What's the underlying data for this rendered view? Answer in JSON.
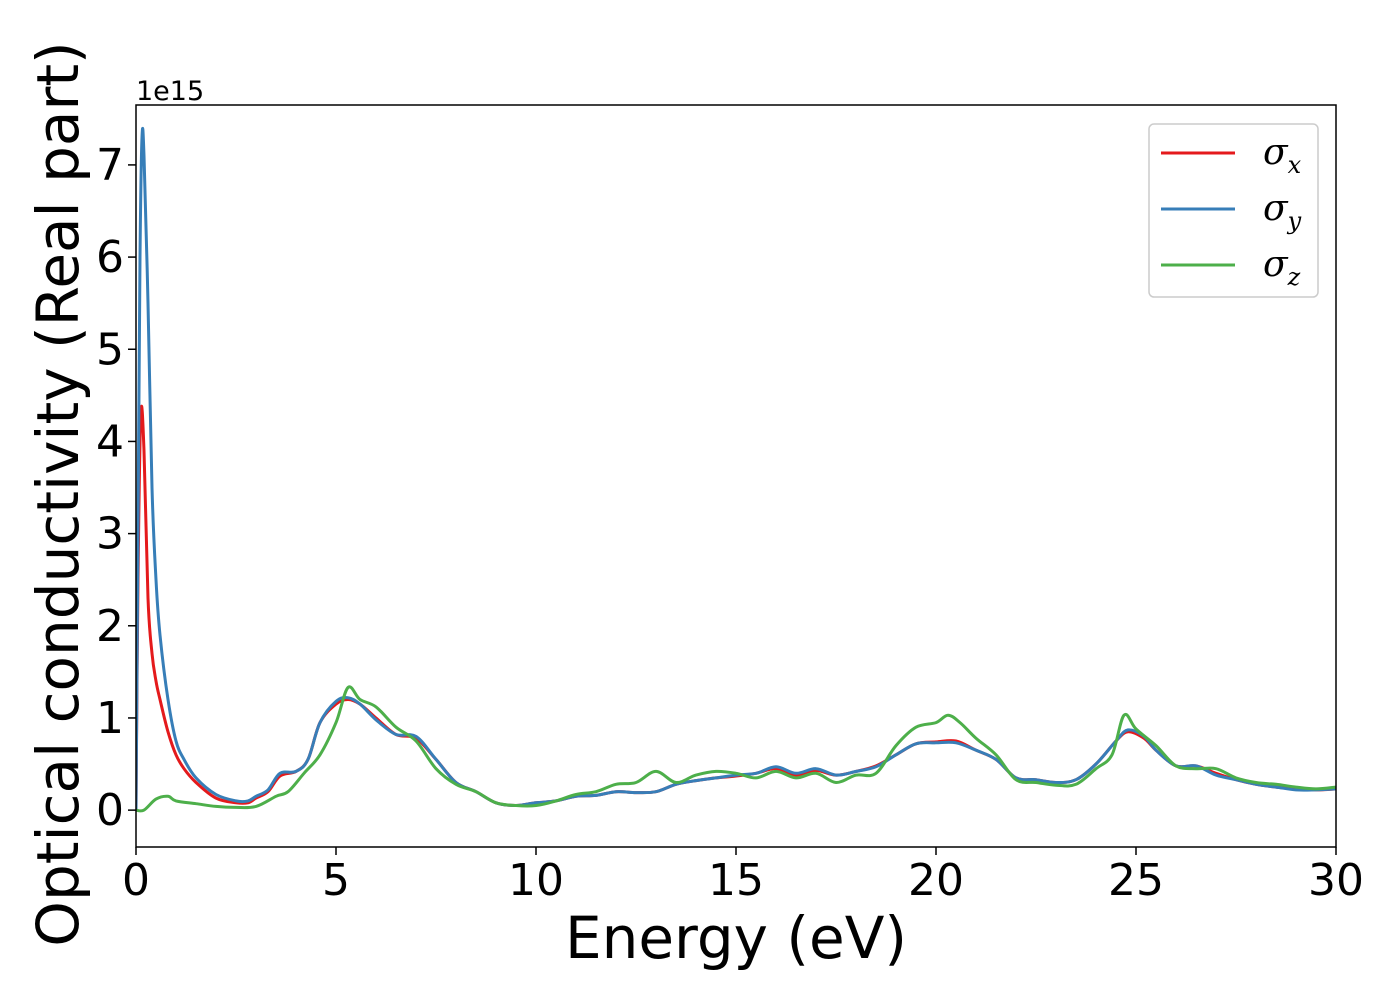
{
  "chart_data": {
    "type": "line",
    "title": "",
    "xlabel": "Energy (eV)",
    "ylabel": "Optical conductivity (Real part)",
    "y_offset_label": "1e15",
    "xlim": [
      0,
      30
    ],
    "ylim": [
      -0.4,
      7.65
    ],
    "xticks": [
      0,
      5,
      10,
      15,
      20,
      25,
      30
    ],
    "xtick_labels": [
      "0",
      "5",
      "10",
      "15",
      "20",
      "25",
      "30"
    ],
    "yticks": [
      0,
      1,
      2,
      3,
      4,
      5,
      6,
      7
    ],
    "ytick_labels": [
      "0",
      "1",
      "2",
      "3",
      "4",
      "5",
      "6",
      "7"
    ],
    "grid": false,
    "legend_position": "top-right",
    "series": [
      {
        "name": "σx",
        "symbol": "σ",
        "subscript": "x",
        "color": "#e41a1c",
        "x": [
          0,
          0.05,
          0.12,
          0.2,
          0.3,
          0.4,
          0.5,
          0.6,
          0.8,
          1.0,
          1.2,
          1.5,
          2.0,
          2.5,
          2.8,
          3.0,
          3.3,
          3.6,
          4.0,
          4.3,
          4.6,
          5.0,
          5.3,
          5.6,
          6.0,
          6.5,
          7.0,
          7.5,
          8.0,
          8.5,
          9.0,
          9.5,
          10.0,
          10.5,
          11.0,
          11.5,
          12.0,
          12.5,
          13.0,
          13.5,
          14.0,
          14.5,
          15.0,
          15.5,
          16.0,
          16.5,
          17.0,
          17.5,
          18.0,
          18.5,
          19.0,
          19.5,
          20.0,
          20.5,
          21.0,
          21.5,
          22.0,
          22.5,
          23.0,
          23.5,
          24.0,
          24.5,
          24.8,
          25.2,
          25.5,
          26.0,
          26.5,
          27.0,
          27.5,
          28.0,
          28.5,
          29.0,
          29.5,
          30.0
        ],
        "values": [
          0,
          2.5,
          4.3,
          3.9,
          2.3,
          1.7,
          1.4,
          1.2,
          0.85,
          0.6,
          0.45,
          0.3,
          0.13,
          0.08,
          0.08,
          0.13,
          0.2,
          0.37,
          0.42,
          0.55,
          0.95,
          1.15,
          1.2,
          1.15,
          1.0,
          0.82,
          0.78,
          0.55,
          0.3,
          0.2,
          0.08,
          0.05,
          0.08,
          0.1,
          0.15,
          0.16,
          0.2,
          0.19,
          0.2,
          0.28,
          0.32,
          0.35,
          0.37,
          0.4,
          0.45,
          0.38,
          0.43,
          0.38,
          0.42,
          0.48,
          0.6,
          0.72,
          0.74,
          0.75,
          0.65,
          0.55,
          0.35,
          0.33,
          0.3,
          0.33,
          0.5,
          0.75,
          0.85,
          0.78,
          0.65,
          0.48,
          0.48,
          0.4,
          0.33,
          0.28,
          0.25,
          0.23,
          0.22,
          0.23
        ]
      },
      {
        "name": "σy",
        "symbol": "σ",
        "subscript": "y",
        "color": "#377eb8",
        "x": [
          0,
          0.05,
          0.1,
          0.15,
          0.2,
          0.3,
          0.4,
          0.5,
          0.6,
          0.8,
          1.0,
          1.2,
          1.5,
          2.0,
          2.5,
          2.8,
          3.0,
          3.3,
          3.6,
          4.0,
          4.3,
          4.6,
          5.0,
          5.3,
          5.6,
          6.0,
          6.5,
          7.0,
          7.5,
          8.0,
          8.5,
          9.0,
          9.5,
          10.0,
          10.5,
          11.0,
          11.5,
          12.0,
          12.5,
          13.0,
          13.5,
          14.0,
          14.5,
          15.0,
          15.5,
          16.0,
          16.5,
          17.0,
          17.5,
          18.0,
          18.5,
          19.0,
          19.5,
          20.0,
          20.5,
          21.0,
          21.5,
          22.0,
          22.5,
          23.0,
          23.5,
          24.0,
          24.5,
          24.8,
          25.2,
          25.5,
          26.0,
          26.5,
          27.0,
          27.5,
          28.0,
          28.5,
          29.0,
          29.5,
          30.0
        ],
        "values": [
          0,
          3.0,
          6.0,
          7.3,
          7.1,
          5.5,
          3.5,
          2.5,
          1.9,
          1.2,
          0.75,
          0.55,
          0.35,
          0.17,
          0.1,
          0.1,
          0.15,
          0.22,
          0.4,
          0.42,
          0.55,
          0.95,
          1.18,
          1.22,
          1.15,
          0.98,
          0.82,
          0.8,
          0.55,
          0.3,
          0.2,
          0.08,
          0.05,
          0.08,
          0.1,
          0.15,
          0.16,
          0.2,
          0.19,
          0.2,
          0.28,
          0.32,
          0.35,
          0.38,
          0.4,
          0.47,
          0.4,
          0.45,
          0.38,
          0.42,
          0.47,
          0.6,
          0.72,
          0.73,
          0.73,
          0.65,
          0.55,
          0.35,
          0.33,
          0.3,
          0.33,
          0.5,
          0.75,
          0.87,
          0.8,
          0.65,
          0.48,
          0.48,
          0.38,
          0.33,
          0.28,
          0.25,
          0.22,
          0.22,
          0.23
        ]
      },
      {
        "name": "σz",
        "symbol": "σ",
        "subscript": "z",
        "color": "#4daf4a",
        "x": [
          0,
          0.2,
          0.5,
          0.8,
          1.0,
          1.5,
          2.0,
          2.5,
          3.0,
          3.5,
          3.8,
          4.2,
          4.6,
          5.0,
          5.3,
          5.6,
          6.0,
          6.5,
          7.0,
          7.5,
          8.0,
          8.5,
          9.0,
          9.5,
          10.0,
          10.5,
          11.0,
          11.5,
          12.0,
          12.5,
          13.0,
          13.5,
          14.0,
          14.5,
          15.0,
          15.5,
          16.0,
          16.5,
          17.0,
          17.5,
          18.0,
          18.5,
          19.0,
          19.5,
          20.0,
          20.3,
          20.6,
          21.0,
          21.5,
          22.0,
          22.5,
          23.0,
          23.5,
          24.0,
          24.4,
          24.7,
          25.0,
          25.5,
          26.0,
          26.5,
          27.0,
          27.5,
          28.0,
          28.5,
          29.0,
          29.5,
          30.0
        ],
        "values": [
          0,
          0.0,
          0.12,
          0.15,
          0.1,
          0.07,
          0.04,
          0.03,
          0.04,
          0.15,
          0.2,
          0.4,
          0.6,
          0.95,
          1.33,
          1.2,
          1.12,
          0.9,
          0.75,
          0.45,
          0.28,
          0.2,
          0.08,
          0.05,
          0.05,
          0.1,
          0.17,
          0.2,
          0.28,
          0.3,
          0.42,
          0.3,
          0.38,
          0.42,
          0.4,
          0.35,
          0.42,
          0.35,
          0.4,
          0.3,
          0.38,
          0.4,
          0.7,
          0.9,
          0.95,
          1.03,
          0.95,
          0.78,
          0.6,
          0.33,
          0.3,
          0.27,
          0.28,
          0.45,
          0.6,
          1.03,
          0.88,
          0.7,
          0.48,
          0.45,
          0.45,
          0.35,
          0.3,
          0.28,
          0.25,
          0.23,
          0.25
        ]
      }
    ]
  }
}
